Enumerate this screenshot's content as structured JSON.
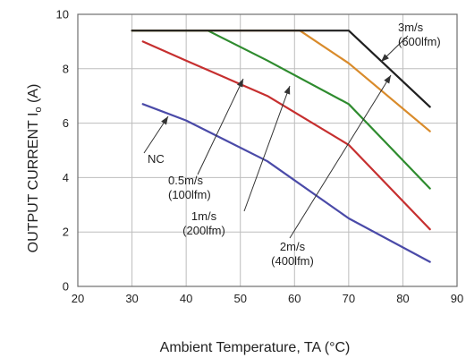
{
  "chart_data": {
    "type": "line",
    "title": "",
    "xlabel": "Ambient Temperature, TA (°C)",
    "ylabel_parts": [
      "OUTPUT CURRENT I",
      "o",
      " (A)"
    ],
    "xlim": [
      20,
      90
    ],
    "ylim": [
      0,
      10
    ],
    "xticks": [
      20,
      30,
      40,
      50,
      60,
      70,
      80,
      90
    ],
    "yticks": [
      0,
      2,
      4,
      6,
      8,
      10
    ],
    "grid": true,
    "legend": "none (series labeled by inline annotations with arrows)",
    "series": [
      {
        "name_lines": [
          "NC"
        ],
        "color": "#4a4aa8",
        "x": [
          32,
          40,
          55,
          70,
          85
        ],
        "y": [
          6.7,
          6.1,
          4.6,
          2.5,
          0.9
        ]
      },
      {
        "name_lines": [
          "0.5m/s",
          "(100lfm)"
        ],
        "color": "#c62f2f",
        "x": [
          32,
          40,
          55,
          70,
          85
        ],
        "y": [
          9.0,
          8.3,
          7.0,
          5.2,
          2.1
        ]
      },
      {
        "name_lines": [
          "1m/s",
          "(200lfm)"
        ],
        "color": "#2e8b2e",
        "x": [
          30,
          44,
          55,
          70,
          85
        ],
        "y": [
          9.4,
          9.4,
          8.3,
          6.7,
          3.6
        ]
      },
      {
        "name_lines": [
          "2m/s",
          "(400lfm)"
        ],
        "color": "#d98b2b",
        "x": [
          30,
          61,
          70,
          85
        ],
        "y": [
          9.4,
          9.4,
          8.2,
          5.7
        ]
      },
      {
        "name_lines": [
          "3m/s",
          "(600lfm)"
        ],
        "color": "#1f1f1f",
        "x": [
          30,
          70,
          85
        ],
        "y": [
          9.4,
          9.4,
          6.6
        ]
      }
    ]
  }
}
